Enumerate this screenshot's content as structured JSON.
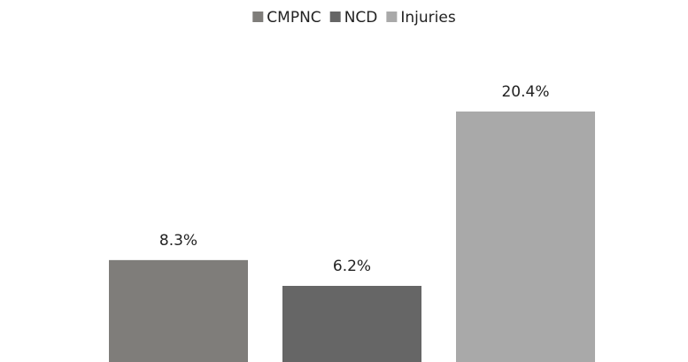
{
  "chart_data": {
    "type": "bar",
    "series": [
      {
        "name": "CMPNC",
        "color": "#7f7d7a",
        "values": [
          8.3
        ],
        "value_labels": [
          "8.3%"
        ]
      },
      {
        "name": "NCD",
        "color": "#666666",
        "values": [
          6.2
        ],
        "value_labels": [
          "6.2%"
        ]
      },
      {
        "name": "Injuries",
        "color": "#a9a9a9",
        "values": [
          20.4
        ],
        "value_labels": [
          "20.4%"
        ]
      }
    ],
    "legend": "top"
  }
}
